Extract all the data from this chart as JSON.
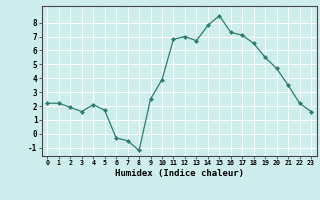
{
  "x": [
    0,
    1,
    2,
    3,
    4,
    5,
    6,
    7,
    8,
    9,
    10,
    11,
    12,
    13,
    14,
    15,
    16,
    17,
    18,
    19,
    20,
    21,
    22,
    23
  ],
  "y": [
    2.2,
    2.2,
    1.9,
    1.6,
    2.1,
    1.7,
    -0.3,
    -0.5,
    -1.2,
    2.5,
    3.9,
    6.8,
    7.0,
    6.7,
    7.8,
    8.5,
    7.3,
    7.1,
    6.5,
    5.5,
    4.7,
    3.5,
    2.2,
    1.6
  ],
  "xlabel": "Humidex (Indice chaleur)",
  "bg_color": "#cdeeed",
  "line_color": "#2e7d6e",
  "marker_color": "#2e7d6e",
  "grid_color": "#ffffff",
  "tick_labels": [
    "0",
    "1",
    "2",
    "3",
    "4",
    "5",
    "6",
    "7",
    "8",
    "9",
    "10",
    "11",
    "12",
    "13",
    "14",
    "15",
    "16",
    "17",
    "18",
    "19",
    "20",
    "21",
    "22",
    "23"
  ],
  "yticks": [
    -1,
    0,
    1,
    2,
    3,
    4,
    5,
    6,
    7,
    8
  ],
  "xlim": [
    -0.5,
    23.5
  ],
  "ylim": [
    -1.6,
    9.2
  ]
}
